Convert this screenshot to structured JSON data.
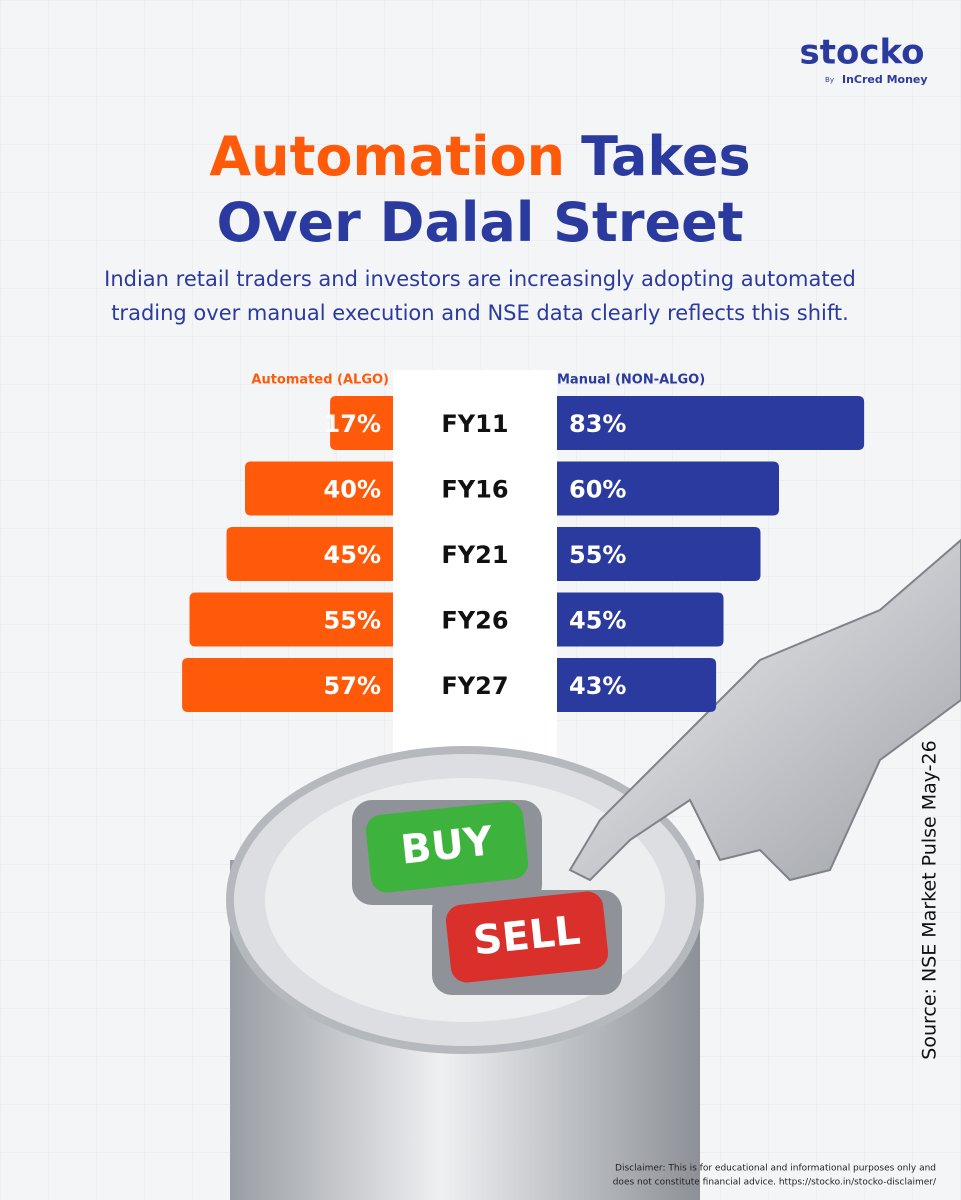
{
  "brand": {
    "name": "stocko",
    "by": "By",
    "partner": "InCred Money"
  },
  "chart_data": {
    "type": "butterfly",
    "title_lines": [
      [
        {
          "text": "Automation",
          "color": "#ff5a0a"
        },
        {
          "text": "Takes",
          "color": "#2b3a9e"
        }
      ],
      [
        {
          "text": "Over Dalal Street",
          "color": "#2b3a9e"
        }
      ]
    ],
    "subtitle_lines": [
      "Indian retail traders and investors are increasingly adopting automated",
      "trading over manual execution and NSE data clearly reflects this shift."
    ],
    "categories": [
      "FY11",
      "FY16",
      "FY21",
      "FY26",
      "FY27"
    ],
    "series": [
      {
        "name": "Automated (ALGO)",
        "color": "#ff5a0a",
        "values": [
          17,
          40,
          45,
          55,
          57
        ],
        "value_labels": [
          "17%",
          "40%",
          "45%",
          "55%",
          "57%"
        ]
      },
      {
        "name": "Manual (NON-ALGO)",
        "color": "#2b3a9e",
        "values": [
          83,
          60,
          55,
          45,
          43
        ],
        "value_labels": [
          "83%",
          "60%",
          "55%",
          "45%",
          "43%"
        ]
      }
    ],
    "source": "Source: NSE Market Pulse May-26"
  },
  "buttons": [
    "BUY",
    "SELL"
  ],
  "disclaimer_lines": [
    "Disclaimer: This is for educational and informational purposes only and",
    "does not constitute financial advice. https://stocko.in/stocko-disclaimer/"
  ]
}
